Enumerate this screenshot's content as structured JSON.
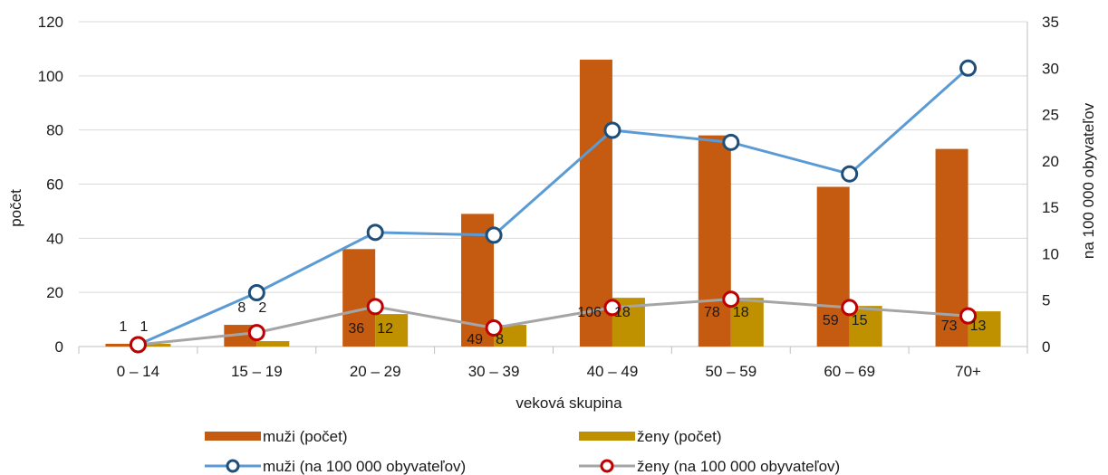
{
  "chart_data": {
    "type": "bar",
    "categories": [
      "0 – 14",
      "15 – 19",
      "20 – 29",
      "30 – 39",
      "40 – 49",
      "50 – 59",
      "60 – 69",
      "70+"
    ],
    "xlabel": "veková skupina",
    "ylabel": "počet",
    "y2label": "na 100 000 obyvateľov",
    "ylim": [
      0,
      120
    ],
    "y2lim": [
      0,
      35
    ],
    "yticks": [
      0,
      20,
      40,
      60,
      80,
      100,
      120
    ],
    "y2ticks": [
      0,
      5,
      10,
      15,
      20,
      25,
      30,
      35
    ],
    "grid": true,
    "legend_position": "bottom",
    "series": [
      {
        "name": "muži (počet)",
        "kind": "bar",
        "axis": "left",
        "color": "#c55a11",
        "values": [
          1,
          8,
          36,
          49,
          106,
          78,
          59,
          73
        ]
      },
      {
        "name": "ženy (počet)",
        "kind": "bar",
        "axis": "left",
        "color": "#bf9000",
        "values": [
          1,
          2,
          12,
          8,
          18,
          18,
          15,
          13
        ]
      },
      {
        "name": "muži (na 100 000 obyvateľov)",
        "kind": "line",
        "axis": "right",
        "color": "#5b9bd5",
        "marker_color": "#1f4e79",
        "values": [
          0.2,
          5.8,
          12.3,
          12.0,
          23.3,
          22.0,
          18.6,
          30.0
        ]
      },
      {
        "name": "ženy (na 100 000 obyvateľov)",
        "kind": "line",
        "axis": "right",
        "color": "#a5a5a5",
        "marker_color": "#c00000",
        "values": [
          0.2,
          1.5,
          4.3,
          2.0,
          4.2,
          5.1,
          4.2,
          3.3
        ]
      }
    ]
  }
}
